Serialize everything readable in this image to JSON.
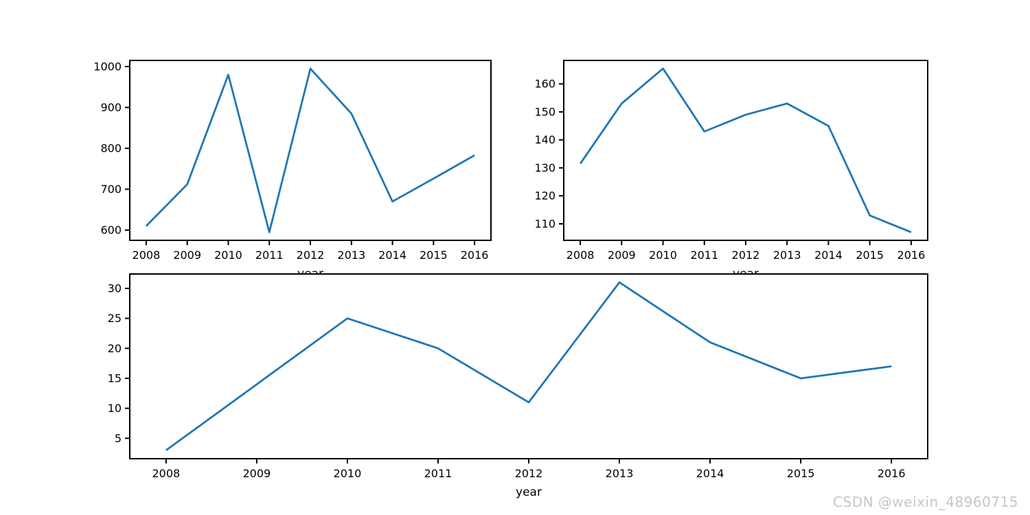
{
  "figure": {
    "background": "#ffffff",
    "spine_color": "#000000",
    "tick_color": "#000000"
  },
  "watermark": {
    "text": "CSDN @weixin_48960715",
    "color": "#c3c7cb"
  },
  "chart_data": [
    {
      "type": "line",
      "name": "top-left-series",
      "x": [
        2008,
        2009,
        2010,
        2011,
        2012,
        2013,
        2014,
        2015,
        2016
      ],
      "values": [
        610,
        712,
        980,
        595,
        995,
        885,
        670,
        726,
        783
      ],
      "title": "",
      "xlabel": "year",
      "ylabel": "",
      "xlim": [
        2007.6,
        2016.4
      ],
      "ylim": [
        575,
        1015
      ],
      "xticks": [
        2008,
        2009,
        2010,
        2011,
        2012,
        2013,
        2014,
        2015,
        2016
      ],
      "yticks": [
        600,
        700,
        800,
        900,
        1000
      ],
      "grid": false,
      "legend": false,
      "line_color": "#1f77b4"
    },
    {
      "type": "line",
      "name": "top-right-series",
      "x": [
        2008,
        2009,
        2010,
        2011,
        2012,
        2013,
        2014,
        2015,
        2016
      ],
      "values": [
        131.5,
        153,
        165.5,
        143,
        149,
        153,
        145,
        113,
        107
      ],
      "title": "",
      "xlabel": "year",
      "ylabel": "",
      "xlim": [
        2007.6,
        2016.4
      ],
      "ylim": [
        104.1,
        168.4
      ],
      "xticks": [
        2008,
        2009,
        2010,
        2011,
        2012,
        2013,
        2014,
        2015,
        2016
      ],
      "yticks": [
        110,
        120,
        130,
        140,
        150,
        160
      ],
      "grid": false,
      "legend": false,
      "line_color": "#1f77b4"
    },
    {
      "type": "line",
      "name": "bottom-series",
      "x": [
        2008,
        2009,
        2010,
        2011,
        2012,
        2013,
        2014,
        2015,
        2016
      ],
      "values": [
        3,
        14,
        25,
        20,
        11,
        31,
        21,
        15,
        17
      ],
      "title": "",
      "xlabel": "year",
      "ylabel": "",
      "xlim": [
        2007.6,
        2016.4
      ],
      "ylim": [
        1.6,
        32.4
      ],
      "xticks": [
        2008,
        2009,
        2010,
        2011,
        2012,
        2013,
        2014,
        2015,
        2016
      ],
      "yticks": [
        5,
        10,
        15,
        20,
        25,
        30
      ],
      "grid": false,
      "legend": false,
      "line_color": "#1f77b4"
    }
  ]
}
